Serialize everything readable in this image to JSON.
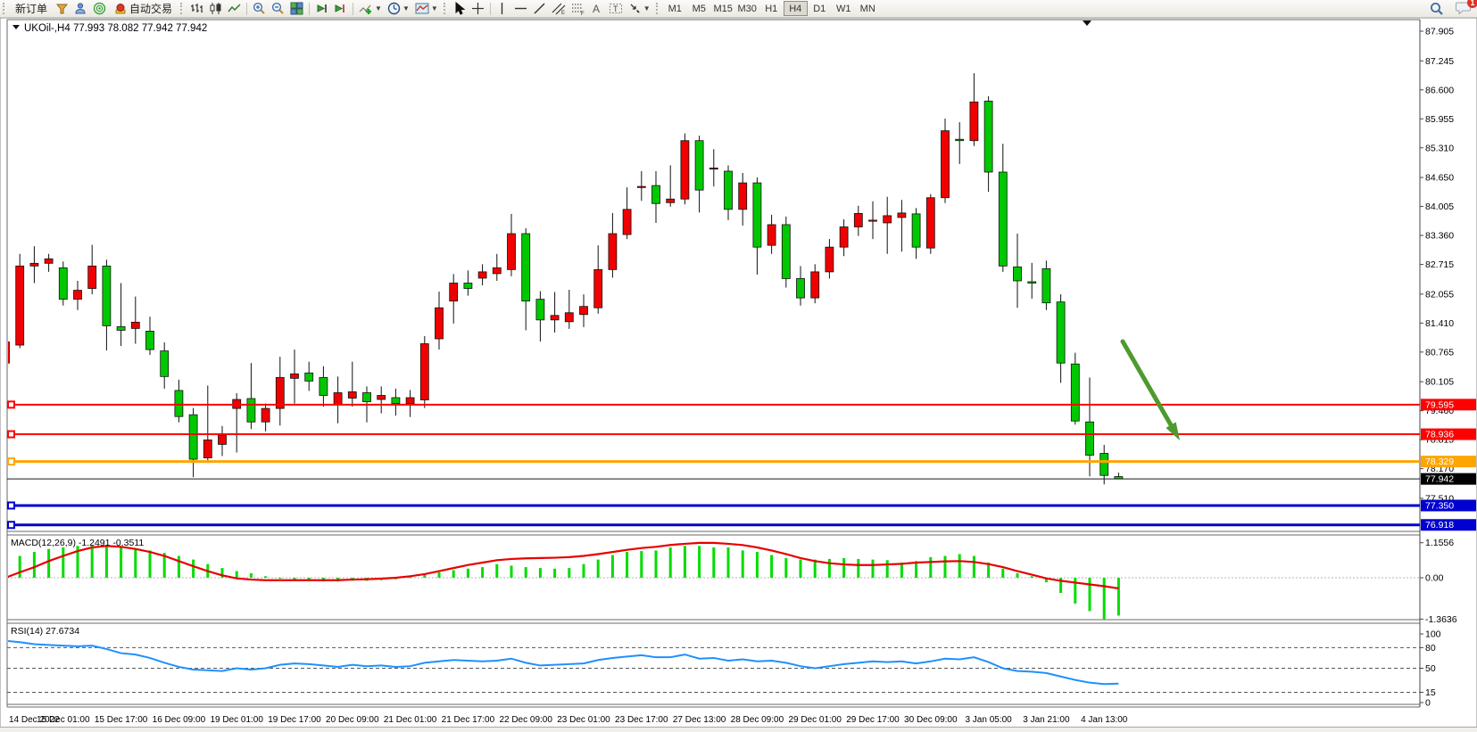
{
  "toolbar": {
    "new_order": "新订单",
    "auto_trading": "自动交易",
    "timeframes": [
      "M1",
      "M5",
      "M15",
      "M30",
      "H1",
      "H4",
      "D1",
      "W1",
      "MN"
    ],
    "active_timeframe": "H4",
    "notification_badge": "1"
  },
  "chart": {
    "title": "UKOil-,H4  77.993 78.082 77.942 77.942",
    "symbol": "UKOil-",
    "timeframe": "H4",
    "ohlc": {
      "open": "77.993",
      "high": "78.082",
      "low": "77.942",
      "close": "77.942"
    }
  },
  "colors": {
    "bull": "#f00000",
    "bear": "#00c800",
    "wick": "#111111",
    "macd_hist": "#00dd00",
    "macd_signal": "#e80000",
    "rsi_line": "#1e90ff",
    "hline_red": "#ff0000",
    "hline_orange": "#ffa500",
    "hline_blue": "#0000d0",
    "hline_black": "#1a1a1a",
    "arrow_green": "#4e9a2e",
    "axis_text": "#000000"
  },
  "chart_data": {
    "type": "candlestick",
    "title": "UKOil-,H4",
    "price_axis_ticks": [
      "87.905",
      "87.245",
      "86.600",
      "85.955",
      "85.310",
      "84.650",
      "84.005",
      "83.360",
      "82.715",
      "82.055",
      "81.410",
      "80.765",
      "80.105",
      "79.460",
      "78.815",
      "78.170",
      "77.510"
    ],
    "x_labels": [
      "14 Dec 2022",
      "15 Dec 01:00",
      "15 Dec 17:00",
      "16 Dec 09:00",
      "19 Dec 01:00",
      "19 Dec 17:00",
      "20 Dec 09:00",
      "21 Dec 01:00",
      "21 Dec 17:00",
      "22 Dec 09:00",
      "23 Dec 01:00",
      "23 Dec 17:00",
      "27 Dec 13:00",
      "28 Dec 09:00",
      "29 Dec 01:00",
      "29 Dec 17:00",
      "30 Dec 09:00",
      "3 Jan 05:00",
      "3 Jan 21:00",
      "4 Jan 13:00"
    ],
    "bars_per_label": 4,
    "candles_ohlc": [
      [
        80.52,
        81.33,
        80.44,
        80.99
      ],
      [
        80.92,
        82.95,
        80.85,
        82.68
      ],
      [
        82.68,
        83.12,
        82.3,
        82.74
      ],
      [
        82.74,
        82.95,
        82.55,
        82.84
      ],
      [
        82.64,
        82.78,
        81.8,
        81.94
      ],
      [
        81.94,
        82.35,
        81.7,
        82.14
      ],
      [
        82.18,
        83.15,
        82.05,
        82.68
      ],
      [
        82.68,
        82.82,
        80.8,
        81.35
      ],
      [
        81.33,
        82.3,
        80.9,
        81.25
      ],
      [
        81.29,
        82.0,
        80.95,
        81.43
      ],
      [
        81.23,
        81.55,
        80.7,
        80.82
      ],
      [
        80.79,
        80.98,
        79.95,
        80.22
      ],
      [
        79.91,
        80.15,
        79.2,
        79.33
      ],
      [
        79.37,
        79.52,
        77.98,
        78.38
      ],
      [
        78.41,
        80.02,
        78.3,
        78.81
      ],
      [
        78.71,
        79.12,
        78.45,
        78.91
      ],
      [
        79.51,
        79.85,
        78.53,
        79.71
      ],
      [
        79.73,
        80.52,
        79.05,
        79.21
      ],
      [
        79.21,
        79.62,
        79.0,
        79.51
      ],
      [
        79.51,
        80.66,
        79.13,
        80.2
      ],
      [
        80.18,
        80.82,
        79.62,
        80.28
      ],
      [
        80.3,
        80.55,
        79.9,
        80.12
      ],
      [
        80.2,
        80.45,
        79.55,
        79.8
      ],
      [
        79.6,
        80.22,
        79.18,
        79.86
      ],
      [
        79.74,
        80.55,
        79.55,
        79.88
      ],
      [
        79.86,
        80.0,
        79.2,
        79.66
      ],
      [
        79.71,
        80.0,
        79.4,
        79.8
      ],
      [
        79.75,
        79.95,
        79.35,
        79.62
      ],
      [
        79.62,
        79.92,
        79.32,
        79.75
      ],
      [
        79.7,
        81.12,
        79.52,
        80.95
      ],
      [
        81.06,
        82.11,
        80.82,
        81.75
      ],
      [
        81.9,
        82.5,
        81.4,
        82.3
      ],
      [
        82.3,
        82.58,
        82.02,
        82.18
      ],
      [
        82.41,
        82.72,
        82.25,
        82.55
      ],
      [
        82.51,
        82.95,
        82.35,
        82.64
      ],
      [
        82.6,
        83.84,
        82.45,
        83.4
      ],
      [
        83.4,
        83.52,
        81.25,
        81.9
      ],
      [
        81.94,
        82.12,
        81.0,
        81.48
      ],
      [
        81.48,
        82.1,
        81.2,
        81.58
      ],
      [
        81.44,
        82.15,
        81.28,
        81.64
      ],
      [
        81.6,
        82.05,
        81.32,
        81.78
      ],
      [
        81.75,
        83.14,
        81.62,
        82.6
      ],
      [
        82.6,
        83.86,
        82.42,
        83.4
      ],
      [
        83.38,
        84.43,
        83.28,
        83.94
      ],
      [
        84.43,
        84.79,
        84.13,
        84.45
      ],
      [
        84.47,
        84.79,
        83.64,
        84.07
      ],
      [
        84.09,
        84.92,
        84.0,
        84.17
      ],
      [
        84.17,
        85.63,
        84.05,
        85.47
      ],
      [
        85.47,
        85.58,
        83.87,
        84.37
      ],
      [
        84.84,
        85.28,
        84.45,
        84.86
      ],
      [
        84.79,
        84.92,
        83.7,
        83.94
      ],
      [
        83.94,
        84.75,
        83.58,
        84.53
      ],
      [
        84.53,
        84.65,
        82.49,
        83.1
      ],
      [
        83.14,
        83.82,
        82.95,
        83.6
      ],
      [
        83.6,
        83.78,
        82.2,
        82.4
      ],
      [
        82.4,
        82.68,
        81.8,
        81.97
      ],
      [
        81.97,
        82.72,
        81.85,
        82.55
      ],
      [
        82.55,
        83.28,
        82.4,
        83.1
      ],
      [
        83.1,
        83.72,
        82.9,
        83.55
      ],
      [
        83.55,
        84.02,
        83.35,
        83.85
      ],
      [
        83.68,
        84.12,
        83.28,
        83.7
      ],
      [
        83.64,
        84.22,
        82.95,
        83.8
      ],
      [
        83.76,
        84.15,
        83.0,
        83.86
      ],
      [
        83.84,
        83.97,
        82.84,
        83.1
      ],
      [
        83.08,
        84.28,
        82.95,
        84.2
      ],
      [
        84.2,
        85.96,
        84.08,
        85.69
      ],
      [
        85.5,
        85.88,
        84.95,
        85.47
      ],
      [
        85.47,
        86.97,
        85.35,
        86.33
      ],
      [
        86.35,
        86.46,
        84.33,
        84.77
      ],
      [
        84.77,
        85.4,
        82.55,
        82.68
      ],
      [
        82.66,
        83.4,
        81.75,
        82.35
      ],
      [
        82.33,
        82.75,
        81.95,
        82.3
      ],
      [
        82.62,
        82.8,
        81.7,
        81.86
      ],
      [
        81.88,
        82.05,
        80.08,
        80.52
      ],
      [
        80.5,
        80.75,
        79.15,
        79.23
      ],
      [
        79.21,
        80.2,
        78.0,
        78.47
      ],
      [
        78.51,
        78.7,
        77.82,
        78.02
      ],
      [
        77.993,
        78.082,
        77.942,
        77.942
      ]
    ],
    "horizontal_lines": [
      {
        "label": "79.595",
        "price": 79.595,
        "color": "#ff0000",
        "width": 2
      },
      {
        "label": "78.936",
        "price": 78.936,
        "color": "#ff0000",
        "width": 2
      },
      {
        "label": "78.329",
        "price": 78.329,
        "color": "#ffa500",
        "width": 3
      },
      {
        "label": "77.942",
        "price": 77.942,
        "color": "#1a1a1a",
        "width": 1
      },
      {
        "label": "77.350",
        "price": 77.35,
        "color": "#0000d0",
        "width": 3
      },
      {
        "label": "76.918",
        "price": 76.918,
        "color": "#0000d0",
        "width": 3
      }
    ],
    "indicators": {
      "macd": {
        "label": "MACD(12,26,9) -1.2491 -0.3511",
        "axis_ticks": [
          "1.1556",
          "0.00",
          "-1.3636"
        ],
        "histogram": [
          0.55,
          0.72,
          0.85,
          0.95,
          1.0,
          1.05,
          1.08,
          1.05,
          1.0,
          0.95,
          0.9,
          0.82,
          0.72,
          0.6,
          0.45,
          0.32,
          0.22,
          0.15,
          0.05,
          -0.02,
          -0.08,
          -0.1,
          -0.12,
          -0.12,
          -0.1,
          -0.1,
          -0.08,
          -0.05,
          0.02,
          0.1,
          0.18,
          0.25,
          0.3,
          0.35,
          0.45,
          0.4,
          0.35,
          0.32,
          0.3,
          0.32,
          0.45,
          0.6,
          0.75,
          0.85,
          0.88,
          0.9,
          1.0,
          1.05,
          1.05,
          1.0,
          1.0,
          0.9,
          0.85,
          0.75,
          0.65,
          0.6,
          0.6,
          0.62,
          0.65,
          0.62,
          0.6,
          0.58,
          0.5,
          0.55,
          0.68,
          0.72,
          0.78,
          0.72,
          0.5,
          0.3,
          0.15,
          0.05,
          -0.15,
          -0.5,
          -0.85,
          -1.1,
          -1.3636,
          -1.2491
        ],
        "signal": [
          0.0,
          0.18,
          0.35,
          0.55,
          0.72,
          0.88,
          1.0,
          1.05,
          1.02,
          0.95,
          0.85,
          0.72,
          0.55,
          0.38,
          0.22,
          0.08,
          -0.02,
          -0.06,
          -0.08,
          -0.08,
          -0.08,
          -0.08,
          -0.08,
          -0.08,
          -0.06,
          -0.05,
          -0.03,
          0.0,
          0.05,
          0.12,
          0.22,
          0.32,
          0.42,
          0.5,
          0.58,
          0.62,
          0.64,
          0.65,
          0.66,
          0.68,
          0.72,
          0.78,
          0.85,
          0.92,
          0.98,
          1.02,
          1.08,
          1.12,
          1.15,
          1.15,
          1.12,
          1.08,
          1.0,
          0.9,
          0.78,
          0.65,
          0.55,
          0.48,
          0.44,
          0.42,
          0.42,
          0.44,
          0.46,
          0.5,
          0.52,
          0.54,
          0.55,
          0.52,
          0.45,
          0.35,
          0.22,
          0.1,
          -0.02,
          -0.1,
          -0.16,
          -0.22,
          -0.28,
          -0.3511
        ]
      },
      "rsi": {
        "label": "RSI(14) 27.6734",
        "axis_ticks": [
          "100",
          "80",
          "50",
          "15",
          "0"
        ],
        "levels": [
          80,
          50,
          15
        ],
        "values": [
          90,
          88,
          85,
          84,
          83,
          82,
          83,
          78,
          72,
          70,
          65,
          58,
          52,
          48,
          47,
          46,
          50,
          48,
          50,
          55,
          57,
          56,
          54,
          52,
          55,
          53,
          54,
          52,
          53,
          58,
          60,
          62,
          61,
          60,
          61,
          64,
          58,
          54,
          55,
          56,
          57,
          62,
          65,
          67,
          69,
          66,
          66,
          70,
          64,
          65,
          61,
          63,
          60,
          61,
          58,
          53,
          50,
          53,
          56,
          58,
          60,
          59,
          60,
          57,
          60,
          64,
          63,
          66,
          59,
          50,
          46,
          45,
          43,
          38,
          33,
          29,
          27,
          27.6734
        ]
      }
    },
    "annotation_arrow": {
      "from": [
        1258,
        383
      ],
      "to": [
        1322,
        494
      ],
      "color": "#4e9a2e"
    }
  }
}
